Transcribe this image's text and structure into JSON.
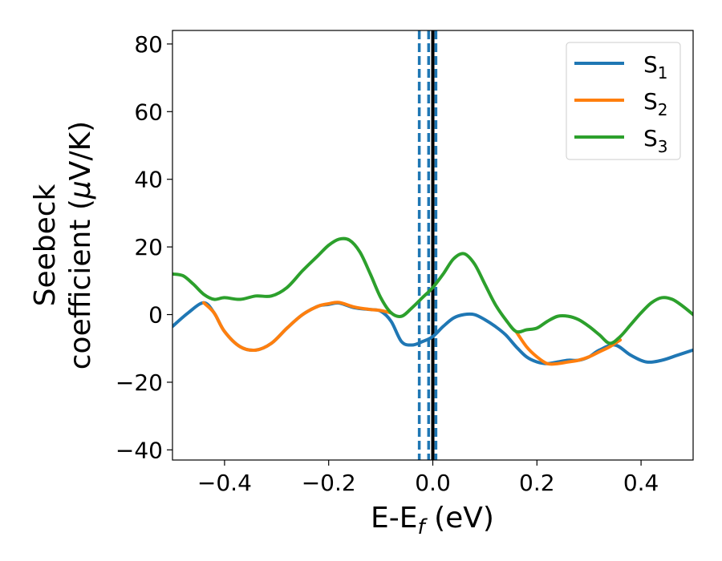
{
  "chart_data": {
    "type": "line",
    "title": "",
    "xlabel": {
      "main": "E-E",
      "sub": "f",
      "tail": " (eV)"
    },
    "ylabel": {
      "line1": "Seebeck",
      "line2_pre": "coefficient  (",
      "mu": "μ",
      "line2_post": "V/K)"
    },
    "xlim": [
      -0.5,
      0.5
    ],
    "ylim": [
      -43,
      84
    ],
    "xticks": [
      -0.4,
      -0.2,
      0.0,
      0.2,
      0.4
    ],
    "xtick_labels": [
      "−0.4",
      "−0.2",
      "0.0",
      "0.2",
      "0.4"
    ],
    "yticks": [
      -40,
      -20,
      0,
      20,
      40,
      60,
      80
    ],
    "ytick_labels": [
      "−40",
      "−20",
      "0",
      "20",
      "40",
      "60",
      "80"
    ],
    "grid": false,
    "legend_position": "top-right",
    "vertical_lines": [
      {
        "x": -0.026,
        "style": "dashed",
        "color": "#1f77b4"
      },
      {
        "x": -0.008,
        "style": "dashed",
        "color": "#1f77b4"
      },
      {
        "x": 0.006,
        "style": "dashed",
        "color": "#1f77b4"
      },
      {
        "x": 0.0,
        "style": "solid",
        "color": "#000000"
      }
    ],
    "series": [
      {
        "name": "S",
        "sub": "1",
        "color": "#1f77b4",
        "x": [
          -0.5,
          -0.47,
          -0.44,
          -0.42,
          -0.4,
          -0.37,
          -0.34,
          -0.31,
          -0.28,
          -0.25,
          -0.22,
          -0.2,
          -0.18,
          -0.15,
          -0.12,
          -0.1,
          -0.08,
          -0.06,
          -0.04,
          -0.02,
          0.0,
          0.02,
          0.04,
          0.06,
          0.08,
          0.1,
          0.12,
          0.14,
          0.16,
          0.18,
          0.2,
          0.22,
          0.24,
          0.26,
          0.28,
          0.3,
          0.32,
          0.35,
          0.38,
          0.41,
          0.44,
          0.47,
          0.5
        ],
        "y": [
          -3.5,
          0.5,
          3.5,
          0.5,
          -5,
          -9.5,
          -10.5,
          -8.5,
          -4,
          0,
          2.5,
          3,
          3.4,
          2,
          1.5,
          1,
          -2,
          -8,
          -9,
          -8,
          -6.5,
          -3.5,
          -1,
          0,
          0,
          -1.5,
          -3.5,
          -6,
          -9.5,
          -12.5,
          -14,
          -14.5,
          -14,
          -13.5,
          -13.5,
          -12.5,
          -10.5,
          -9,
          -12,
          -14,
          -13.5,
          -12,
          -10.5
        ]
      },
      {
        "name": "S",
        "sub": "2",
        "color": "#ff7f0e",
        "x": [
          -0.44,
          -0.42,
          -0.4,
          -0.37,
          -0.34,
          -0.31,
          -0.28,
          -0.25,
          -0.22,
          -0.2,
          -0.18,
          -0.15,
          -0.12,
          -0.1,
          -0.08,
          0.16,
          0.18,
          0.2,
          0.22,
          0.24,
          0.26,
          0.28,
          0.3,
          0.32,
          0.34,
          0.36
        ],
        "y": [
          3.5,
          0.5,
          -5,
          -9.5,
          -10.5,
          -8.5,
          -4,
          0,
          2.5,
          3.2,
          3.6,
          2.2,
          1.5,
          1.2,
          0.5,
          -5,
          -9.5,
          -12.5,
          -14.5,
          -14.5,
          -14,
          -13.5,
          -12.5,
          -11,
          -9.5,
          -7.5
        ]
      },
      {
        "name": "S",
        "sub": "3",
        "color": "#2ca02c",
        "x": [
          -0.5,
          -0.48,
          -0.46,
          -0.44,
          -0.42,
          -0.4,
          -0.37,
          -0.34,
          -0.31,
          -0.28,
          -0.25,
          -0.22,
          -0.2,
          -0.18,
          -0.16,
          -0.14,
          -0.12,
          -0.1,
          -0.08,
          -0.06,
          -0.04,
          -0.02,
          0.0,
          0.02,
          0.04,
          0.06,
          0.08,
          0.1,
          0.12,
          0.14,
          0.16,
          0.18,
          0.2,
          0.22,
          0.24,
          0.26,
          0.28,
          0.3,
          0.32,
          0.34,
          0.36,
          0.38,
          0.4,
          0.42,
          0.44,
          0.46,
          0.48,
          0.5
        ],
        "y": [
          12,
          11.5,
          9,
          6,
          4.5,
          5,
          4.5,
          5.5,
          5.5,
          8,
          13,
          17.5,
          20.5,
          22.3,
          22,
          18.5,
          12,
          5,
          0.5,
          -0.5,
          2,
          5,
          8,
          12,
          16.5,
          18,
          15,
          9,
          3,
          -1.5,
          -5,
          -4.5,
          -4,
          -2,
          -0.5,
          -0.5,
          -1.5,
          -3.5,
          -6,
          -8.5,
          -6.5,
          -3,
          0.5,
          3.5,
          5,
          4.5,
          2.5,
          0
        ]
      }
    ]
  }
}
